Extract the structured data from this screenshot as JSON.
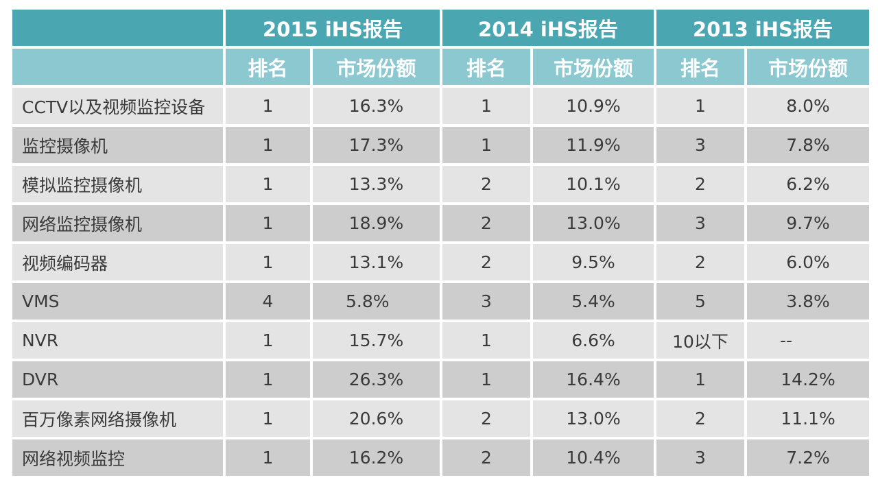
{
  "chart_data": {
    "type": "table",
    "header": {
      "groups": [
        "2015 iHS报告",
        "2014 iHS报告",
        "2013 iHS报告"
      ],
      "sub": [
        "排名",
        "市场份额",
        "排名",
        "市场份额",
        "排名",
        "市场份额"
      ]
    },
    "rows": [
      {
        "label": "CCTV以及视频监控设备",
        "values": [
          "1",
          "16.3%",
          "1",
          "10.9%",
          "1",
          "8.0%"
        ]
      },
      {
        "label": "监控摄像机",
        "values": [
          "1",
          "17.3%",
          "1",
          "11.9%",
          "3",
          "7.8%"
        ]
      },
      {
        "label": "模拟监控摄像机",
        "values": [
          "1",
          "13.3%",
          "2",
          "10.1%",
          "2",
          "6.2%"
        ]
      },
      {
        "label": "网络监控摄像机",
        "values": [
          "1",
          "18.9%",
          "2",
          "13.0%",
          "3",
          "9.7%"
        ]
      },
      {
        "label": "视频编码器",
        "values": [
          "1",
          "13.1%",
          "2",
          "9.5%",
          "2",
          "6.0%"
        ]
      },
      {
        "label": "VMS",
        "values": [
          "4",
          "5.8%",
          "3",
          "5.4%",
          "5",
          "3.8%"
        ]
      },
      {
        "label": "NVR",
        "values": [
          "1",
          "15.7%",
          "1",
          "6.6%",
          "10以下",
          "--"
        ]
      },
      {
        "label": "DVR",
        "values": [
          "1",
          "26.3%",
          "1",
          "16.4%",
          "1",
          "14.2%"
        ]
      },
      {
        "label": "百万像素网络摄像机",
        "values": [
          "1",
          "20.6%",
          "2",
          "13.0%",
          "2",
          "11.1%"
        ]
      },
      {
        "label": "网络视频监控",
        "values": [
          "1",
          "16.2%",
          "2",
          "10.4%",
          "3",
          "7.2%"
        ]
      }
    ]
  },
  "colors": {
    "header_dark": "#4aa6b1",
    "header_light": "#8cc8d0",
    "row_light": "#e4e4e4",
    "row_dark": "#cdcdcd"
  }
}
